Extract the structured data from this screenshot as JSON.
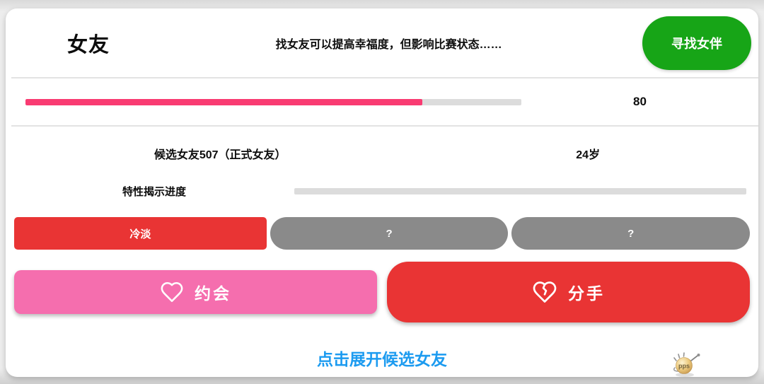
{
  "header": {
    "title": "女友",
    "subtitle": "找女友可以提高幸福度，但影响比赛状态……",
    "find_button_label": "寻找女伴"
  },
  "happiness": {
    "value": "80",
    "percent": 80
  },
  "girlfriend": {
    "name": "候选女友507（正式女友）",
    "age": "24岁",
    "trait_progress_label": "特性揭示进度",
    "trait_progress_percent": 0,
    "traits": [
      {
        "label": "冷淡"
      },
      {
        "label": "?"
      },
      {
        "label": "?"
      }
    ]
  },
  "actions": {
    "date_label": "约会",
    "breakup_label": "分手"
  },
  "footer": {
    "expand_link": "点击展开候选女友",
    "watermark_text": "pps"
  },
  "colors": {
    "find_button_green": "#17a517",
    "happiness_pink": "#f93b72",
    "track_gray": "#dcdcdc",
    "trait_red": "#e93434",
    "trait_gray": "#8a8a8a",
    "date_pink": "#f56eae",
    "breakup_red": "#e93434",
    "link_blue": "#1c9bf0"
  }
}
